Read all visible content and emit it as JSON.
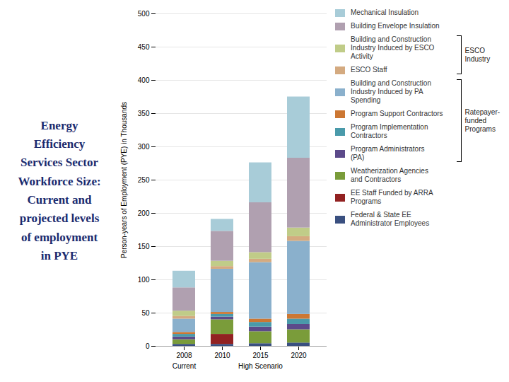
{
  "chart_data": {
    "type": "bar",
    "stacked": true,
    "title": "Energy\nEfficiency\nServices Sector\nWorkforce Size:\nCurrent and\nprojected levels\nof employment\nin PYE",
    "ylabel": "Person-years of Employment (PYE) in Thousands",
    "categories": [
      "2008",
      "2010",
      "2015",
      "2020"
    ],
    "series": [
      {
        "name": "Federal & State EE\nAdministrator Employees",
        "color": "#3a5080",
        "values": [
          3,
          3,
          4,
          5
        ]
      },
      {
        "name": "EE Staff Funded by ARRA\nPrograms",
        "color": "#922222",
        "values": [
          0,
          15,
          0,
          0
        ]
      },
      {
        "name": "Weatherization Agencies\nand Contractors",
        "color": "#7a9c3a",
        "values": [
          7,
          22,
          18,
          20
        ]
      },
      {
        "name": "Program Administrators\n(PA)",
        "color": "#5c4a8a",
        "values": [
          4,
          4,
          7,
          8
        ]
      },
      {
        "name": "Program Implementation\nContractors",
        "color": "#4a9aaa",
        "values": [
          4,
          4,
          7,
          8
        ]
      },
      {
        "name": "Program Support Contractors",
        "color": "#cc7733",
        "values": [
          3,
          3,
          5,
          7
        ]
      },
      {
        "name": "Building and Construction\nIndustry Induced by PA\nSpending",
        "color": "#8ab0cc",
        "values": [
          20,
          65,
          85,
          110
        ]
      },
      {
        "name": "ESCO Staff",
        "color": "#d4aa80",
        "values": [
          4,
          4,
          5,
          7
        ]
      },
      {
        "name": "Building and Construction\nIndustry Induced by ESCO\nActivity",
        "color": "#c0cc88",
        "values": [
          8,
          8,
          10,
          13
        ]
      },
      {
        "name": "Building Envelope Insulation",
        "color": "#b0a0b0",
        "values": [
          35,
          45,
          75,
          105
        ]
      },
      {
        "name": "Mechanical Insulation",
        "color": "#a8ccd8",
        "values": [
          25,
          18,
          60,
          92
        ]
      }
    ],
    "ylim": [
      0,
      500
    ],
    "yticks": [
      0,
      50,
      100,
      150,
      200,
      250,
      300,
      350,
      400,
      450,
      500
    ],
    "grid": true,
    "annotations": [
      {
        "text": "Current",
        "category": "2008"
      },
      {
        "text": "High Scenario",
        "category": "2015"
      }
    ],
    "legend_groups": [
      {
        "label": "ESCO\nIndustry",
        "series": [
          "Building and Construction\nIndustry Induced by ESCO\nActivity",
          "ESCO Staff"
        ]
      },
      {
        "label": "Ratepayer-\nfunded\nPrograms",
        "series": [
          "Building and Construction\nIndustry Induced by PA\nSpending",
          "Program Support Contractors",
          "Program Implementation\nContractors",
          "Program Administrators\n(PA)"
        ]
      }
    ]
  }
}
